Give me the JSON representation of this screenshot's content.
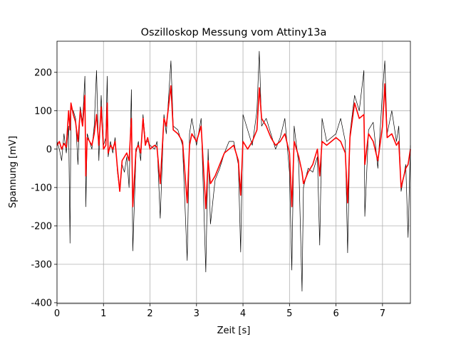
{
  "chart_data": {
    "type": "line",
    "title": "Oszilloskop Messung vom Attiny13a",
    "xlabel": "Zeit [s]",
    "ylabel": "Spannung [mV]",
    "x": [
      0.0,
      0.05,
      0.1,
      0.15,
      0.2,
      0.25,
      0.28,
      0.3,
      0.35,
      0.4,
      0.45,
      0.5,
      0.55,
      0.6,
      0.62,
      0.65,
      0.7,
      0.75,
      0.8,
      0.85,
      0.9,
      0.95,
      1.0,
      1.05,
      1.08,
      1.1,
      1.15,
      1.2,
      1.25,
      1.3,
      1.35,
      1.4,
      1.45,
      1.5,
      1.55,
      1.6,
      1.63,
      1.7,
      1.75,
      1.8,
      1.85,
      1.9,
      1.95,
      2.0,
      2.1,
      2.15,
      2.22,
      2.3,
      2.35,
      2.45,
      2.5,
      2.6,
      2.7,
      2.8,
      2.85,
      2.9,
      3.0,
      3.1,
      3.2,
      3.25,
      3.3,
      3.4,
      3.5,
      3.6,
      3.7,
      3.8,
      3.9,
      3.95,
      4.0,
      4.1,
      4.2,
      4.3,
      4.35,
      4.4,
      4.5,
      4.6,
      4.7,
      4.8,
      4.9,
      5.0,
      5.05,
      5.1,
      5.2,
      5.27,
      5.3,
      5.4,
      5.5,
      5.6,
      5.65,
      5.7,
      5.8,
      5.9,
      6.0,
      6.1,
      6.2,
      6.25,
      6.3,
      6.4,
      6.5,
      6.6,
      6.62,
      6.7,
      6.8,
      6.9,
      7.0,
      7.05,
      7.1,
      7.2,
      7.3,
      7.35,
      7.4,
      7.5,
      7.55,
      7.6
    ],
    "series": [
      {
        "color": "#000000",
        "values": [
          20,
          0,
          -30,
          40,
          -10,
          60,
          -245,
          105,
          100,
          80,
          -40,
          110,
          70,
          190,
          -150,
          40,
          20,
          0,
          60,
          205,
          -30,
          140,
          10,
          30,
          190,
          -20,
          20,
          -10,
          30,
          -60,
          -110,
          -40,
          -60,
          -20,
          -100,
          155,
          -265,
          -10,
          20,
          -30,
          90,
          20,
          20,
          10,
          0,
          20,
          -180,
          90,
          40,
          230,
          60,
          50,
          10,
          -290,
          40,
          80,
          10,
          80,
          -320,
          0,
          -195,
          -80,
          -50,
          -10,
          20,
          20,
          -40,
          -268,
          90,
          50,
          10,
          100,
          255,
          60,
          80,
          40,
          0,
          30,
          80,
          -60,
          -315,
          60,
          -40,
          -370,
          -100,
          -50,
          -60,
          -20,
          -250,
          80,
          20,
          30,
          40,
          80,
          20,
          -270,
          40,
          140,
          100,
          205,
          -175,
          50,
          70,
          -50,
          150,
          230,
          40,
          100,
          20,
          60,
          -110,
          -40,
          -230,
          10
        ]
      },
      {
        "color": "#ff0000",
        "values": [
          10,
          20,
          0,
          15,
          5,
          100,
          50,
          120,
          90,
          70,
          20,
          100,
          60,
          140,
          -70,
          30,
          20,
          10,
          40,
          90,
          10,
          110,
          0,
          10,
          120,
          -10,
          10,
          0,
          20,
          -50,
          -110,
          -30,
          -20,
          -10,
          -30,
          80,
          -150,
          0,
          10,
          -10,
          80,
          10,
          30,
          0,
          10,
          5,
          -90,
          80,
          60,
          165,
          50,
          40,
          20,
          -140,
          10,
          40,
          20,
          60,
          -155,
          -30,
          -90,
          -70,
          -40,
          -10,
          0,
          10,
          -30,
          -120,
          20,
          0,
          20,
          50,
          160,
          80,
          60,
          30,
          10,
          20,
          40,
          -10,
          -150,
          20,
          -20,
          -60,
          -90,
          -60,
          -40,
          0,
          -70,
          20,
          10,
          20,
          30,
          20,
          -10,
          -140,
          30,
          120,
          80,
          90,
          -40,
          40,
          20,
          -30,
          60,
          170,
          30,
          40,
          10,
          20,
          -100,
          -50,
          -40,
          0
        ]
      }
    ],
    "xlim": [
      0,
      7.6
    ],
    "xticks": [
      0,
      1,
      2,
      3,
      4,
      5,
      6,
      7
    ],
    "ylim": [
      -402,
      281
    ],
    "yticks": [
      -400,
      -300,
      -200,
      -100,
      0,
      100,
      200
    ],
    "grid": true
  }
}
